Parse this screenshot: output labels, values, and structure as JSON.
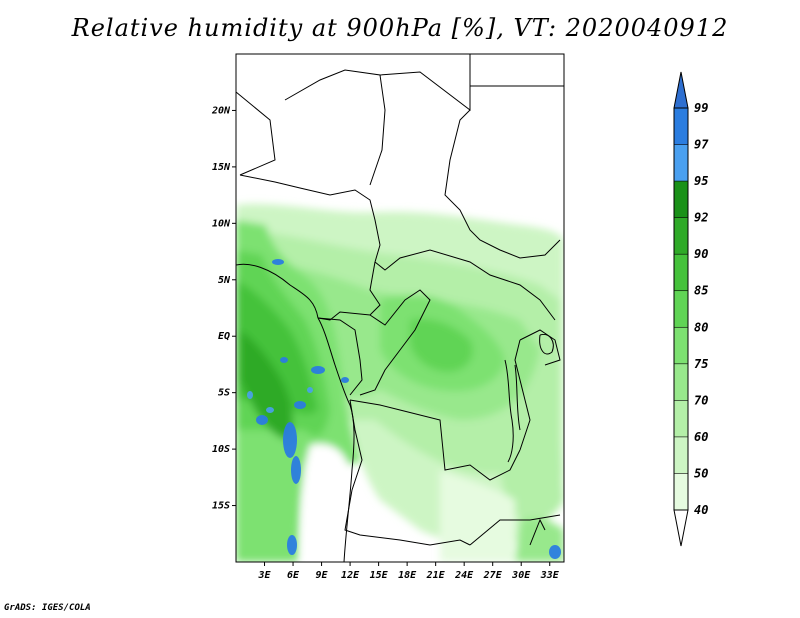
{
  "title": "Relative humidity at 900hPa [%], VT: 2020040912",
  "credit": "GrADS: IGES/COLA",
  "map": {
    "lat_ticks": [
      {
        "lat": 20,
        "label": "20N"
      },
      {
        "lat": 15,
        "label": "15N"
      },
      {
        "lat": 10,
        "label": "10N"
      },
      {
        "lat": 5,
        "label": "5N"
      },
      {
        "lat": 0,
        "label": "EQ"
      },
      {
        "lat": -5,
        "label": "5S"
      },
      {
        "lat": -10,
        "label": "10S"
      },
      {
        "lat": -15,
        "label": "15S"
      }
    ],
    "lon_ticks": [
      {
        "lon": 3,
        "label": "3E"
      },
      {
        "lon": 6,
        "label": "6E"
      },
      {
        "lon": 9,
        "label": "9E"
      },
      {
        "lon": 12,
        "label": "12E"
      },
      {
        "lon": 15,
        "label": "15E"
      },
      {
        "lon": 18,
        "label": "18E"
      },
      {
        "lon": 21,
        "label": "21E"
      },
      {
        "lon": 24,
        "label": "24E"
      },
      {
        "lon": 27,
        "label": "27E"
      },
      {
        "lon": 30,
        "label": "30E"
      },
      {
        "lon": 33,
        "label": "33E"
      }
    ],
    "lon_range": [
      0,
      34.5
    ],
    "lat_range": [
      -20,
      25
    ]
  },
  "colorbar": {
    "levels": [
      {
        "label": "40",
        "color": "#e6fbe0"
      },
      {
        "label": "50",
        "color": "#cdf5c4"
      },
      {
        "label": "60",
        "color": "#b4efa8"
      },
      {
        "label": "70",
        "color": "#98e88c"
      },
      {
        "label": "75",
        "color": "#7de171"
      },
      {
        "label": "80",
        "color": "#60d455"
      },
      {
        "label": "85",
        "color": "#45c23b"
      },
      {
        "label": "90",
        "color": "#2faa28"
      },
      {
        "label": "92",
        "color": "#1a9118"
      },
      {
        "label": "95",
        "color": "#4aa0f0"
      },
      {
        "label": "97",
        "color": "#2b7de0"
      },
      {
        "label": "99",
        "color": "#2067c8"
      }
    ],
    "under_color": "#ffffff",
    "over_color": "#2e6fd0"
  }
}
